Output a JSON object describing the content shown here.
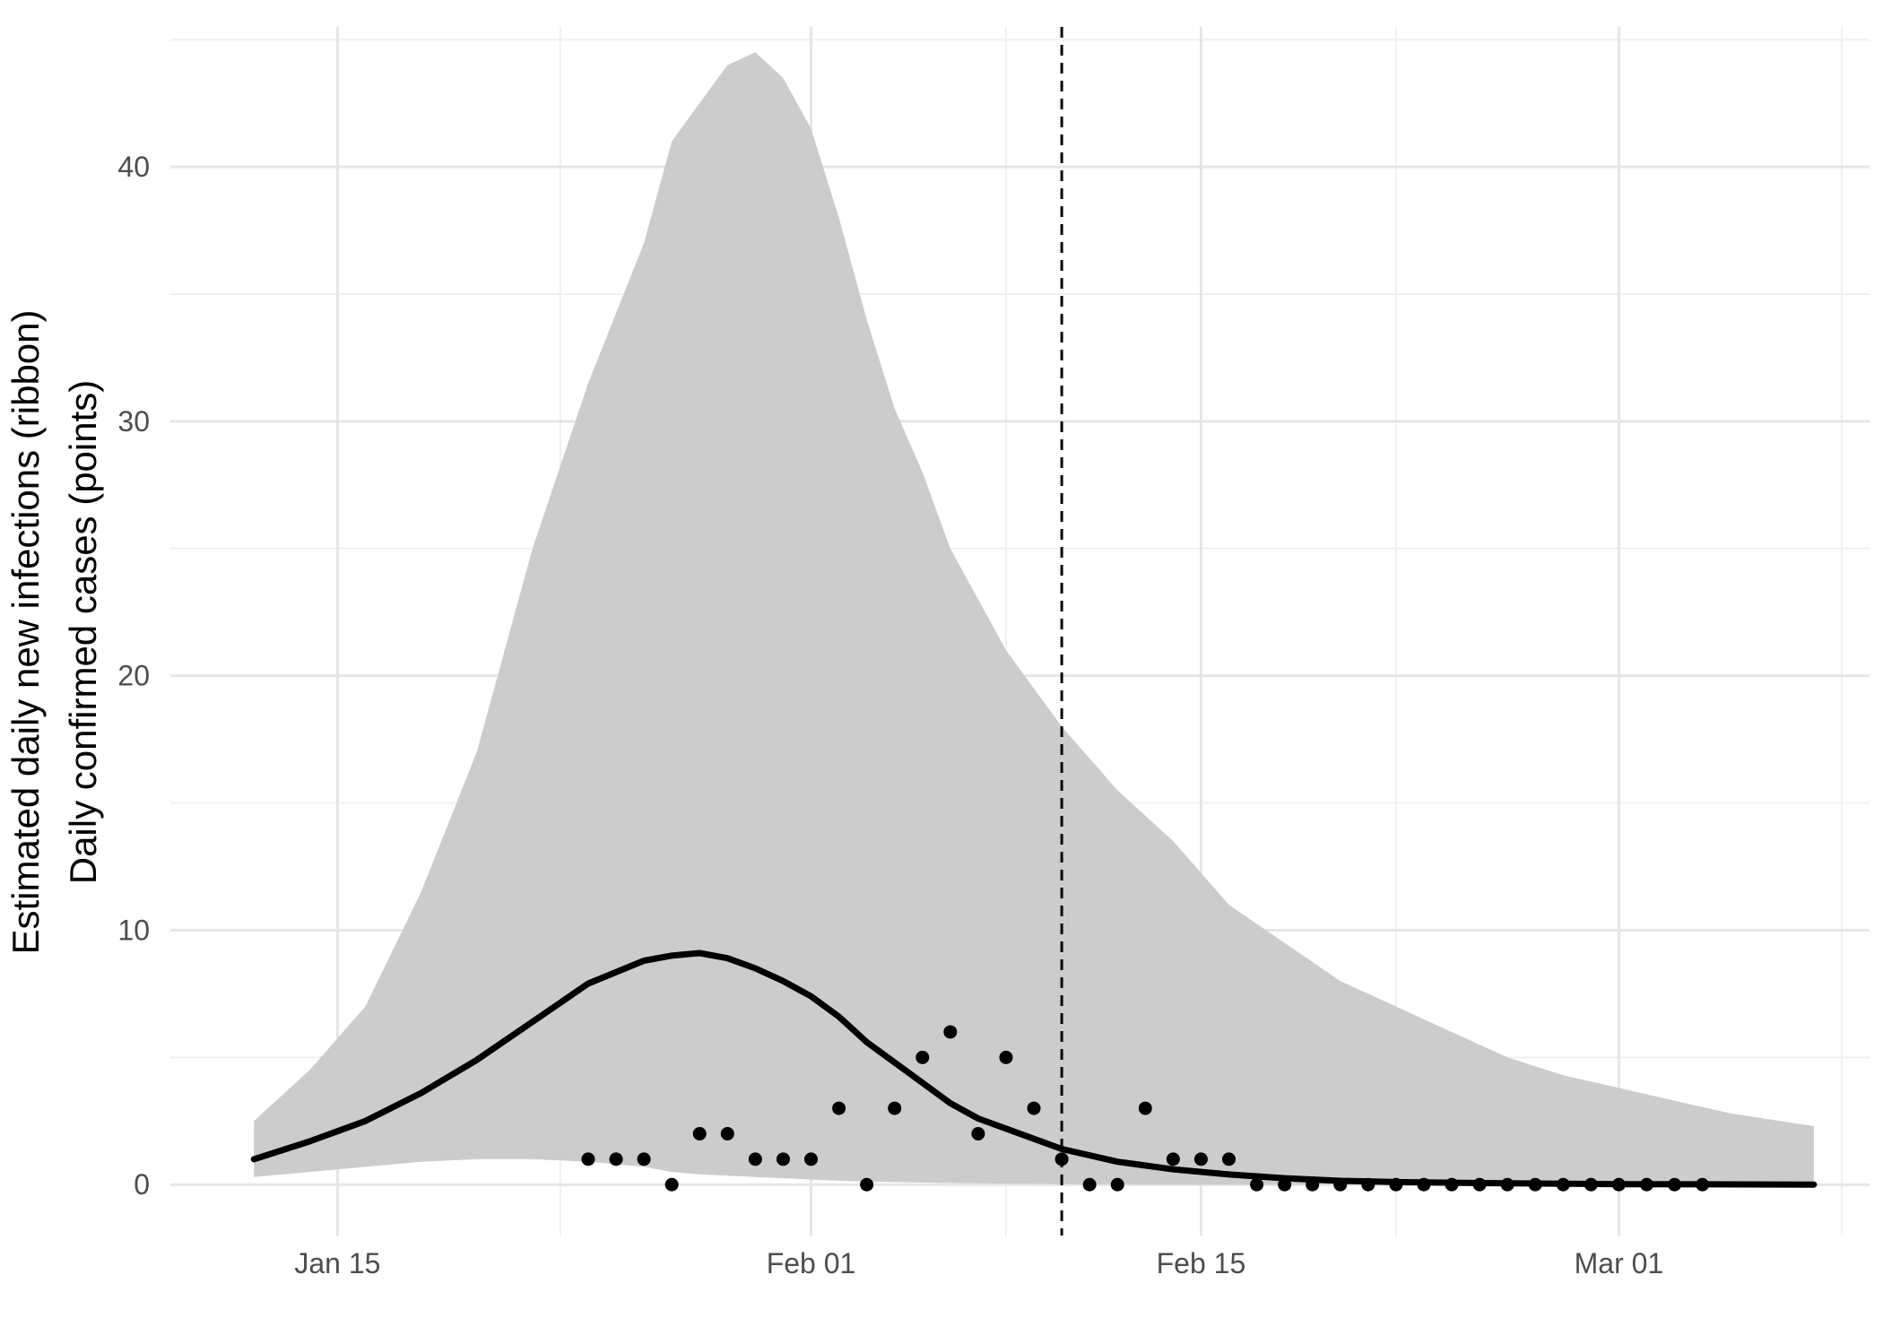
{
  "chart_data": {
    "type": "line",
    "title": "",
    "xlabel": "",
    "ylabel_lines": [
      "Estimated daily new infections (ribbon)",
      "Daily confirmed cases (points)"
    ],
    "x_type": "date",
    "year": 2020,
    "xlim": [
      "2020-01-09",
      "2020-03-10"
    ],
    "ylim": [
      -2,
      45.5
    ],
    "x_ticks": [
      {
        "date": "2020-01-15",
        "label": "Jan 15"
      },
      {
        "date": "2020-02-01",
        "label": "Feb 01"
      },
      {
        "date": "2020-02-15",
        "label": "Feb 15"
      },
      {
        "date": "2020-03-01",
        "label": "Mar 01"
      }
    ],
    "x_minor_ticks": [
      "2020-01-23",
      "2020-02-08",
      "2020-02-22",
      "2020-03-09"
    ],
    "y_ticks": [
      0,
      10,
      20,
      30,
      40
    ],
    "y_minor_ticks": [
      5,
      15,
      25,
      35,
      45
    ],
    "grid": true,
    "vline": {
      "date": "2020-02-10",
      "style": "dashed"
    },
    "ribbon": {
      "name": "Estimated daily new infections",
      "color": "#cccccc",
      "dates": [
        "2020-01-12",
        "2020-01-14",
        "2020-01-16",
        "2020-01-18",
        "2020-01-20",
        "2020-01-22",
        "2020-01-24",
        "2020-01-26",
        "2020-01-27",
        "2020-01-28",
        "2020-01-29",
        "2020-01-30",
        "2020-01-31",
        "2020-02-01",
        "2020-02-02",
        "2020-02-03",
        "2020-02-04",
        "2020-02-05",
        "2020-02-06",
        "2020-02-07",
        "2020-02-08",
        "2020-02-10",
        "2020-02-12",
        "2020-02-14",
        "2020-02-16",
        "2020-02-18",
        "2020-02-20",
        "2020-02-22",
        "2020-02-24",
        "2020-02-26",
        "2020-02-28",
        "2020-03-01",
        "2020-03-03",
        "2020-03-05",
        "2020-03-08"
      ],
      "upper": [
        2.5,
        4.5,
        7.0,
        11.5,
        17.0,
        25.0,
        31.5,
        37.0,
        41.0,
        42.5,
        44.0,
        44.5,
        43.5,
        41.5,
        38.0,
        34.0,
        30.5,
        28.0,
        25.0,
        23.0,
        21.0,
        18.0,
        15.5,
        13.5,
        11.0,
        9.5,
        8.0,
        7.0,
        6.0,
        5.0,
        4.3,
        3.8,
        3.3,
        2.8,
        2.3
      ],
      "lower": [
        0.3,
        0.5,
        0.7,
        0.9,
        1.0,
        1.0,
        0.9,
        0.7,
        0.5,
        0.4,
        0.35,
        0.3,
        0.25,
        0.2,
        0.15,
        0.12,
        0.1,
        0.08,
        0.06,
        0.05,
        0.04,
        0.02,
        0.01,
        0.0,
        0.0,
        0.0,
        0.0,
        0.0,
        0.0,
        0.0,
        0.0,
        0.0,
        0.0,
        0.0,
        0.0
      ]
    },
    "line": {
      "name": "Estimated daily new infections",
      "color": "#000000",
      "dates": [
        "2020-01-12",
        "2020-01-14",
        "2020-01-16",
        "2020-01-18",
        "2020-01-20",
        "2020-01-22",
        "2020-01-24",
        "2020-01-26",
        "2020-01-27",
        "2020-01-28",
        "2020-01-29",
        "2020-01-30",
        "2020-01-31",
        "2020-02-01",
        "2020-02-02",
        "2020-02-03",
        "2020-02-04",
        "2020-02-05",
        "2020-02-06",
        "2020-02-07",
        "2020-02-08",
        "2020-02-10",
        "2020-02-12",
        "2020-02-14",
        "2020-02-16",
        "2020-02-18",
        "2020-02-20",
        "2020-02-22",
        "2020-02-26",
        "2020-03-01",
        "2020-03-08"
      ],
      "values": [
        1.0,
        1.7,
        2.5,
        3.6,
        4.9,
        6.4,
        7.9,
        8.8,
        9.0,
        9.1,
        8.9,
        8.5,
        8.0,
        7.4,
        6.6,
        5.6,
        4.8,
        4.0,
        3.2,
        2.6,
        2.2,
        1.4,
        0.9,
        0.6,
        0.4,
        0.25,
        0.15,
        0.1,
        0.05,
        0.02,
        0.0
      ]
    },
    "points": {
      "name": "Daily confirmed cases",
      "color": "#000000",
      "dates": [
        "2020-01-24",
        "2020-01-25",
        "2020-01-26",
        "2020-01-27",
        "2020-01-28",
        "2020-01-29",
        "2020-01-30",
        "2020-01-31",
        "2020-02-01",
        "2020-02-02",
        "2020-02-03",
        "2020-02-04",
        "2020-02-05",
        "2020-02-06",
        "2020-02-07",
        "2020-02-08",
        "2020-02-09",
        "2020-02-10",
        "2020-02-11",
        "2020-02-12",
        "2020-02-13",
        "2020-02-14",
        "2020-02-15",
        "2020-02-16",
        "2020-02-17",
        "2020-02-18",
        "2020-02-19",
        "2020-02-20",
        "2020-02-21",
        "2020-02-22",
        "2020-02-23",
        "2020-02-24",
        "2020-02-25",
        "2020-02-26",
        "2020-02-27",
        "2020-02-28",
        "2020-02-29",
        "2020-03-01",
        "2020-03-02",
        "2020-03-03",
        "2020-03-04"
      ],
      "values": [
        1,
        1,
        1,
        0,
        2,
        2,
        1,
        1,
        1,
        3,
        0,
        3,
        5,
        6,
        2,
        5,
        3,
        1,
        0,
        0,
        3,
        1,
        1,
        1,
        0,
        0,
        0,
        0,
        0,
        0,
        0,
        0,
        0,
        0,
        0,
        0,
        0,
        0,
        0,
        0,
        0
      ]
    }
  }
}
